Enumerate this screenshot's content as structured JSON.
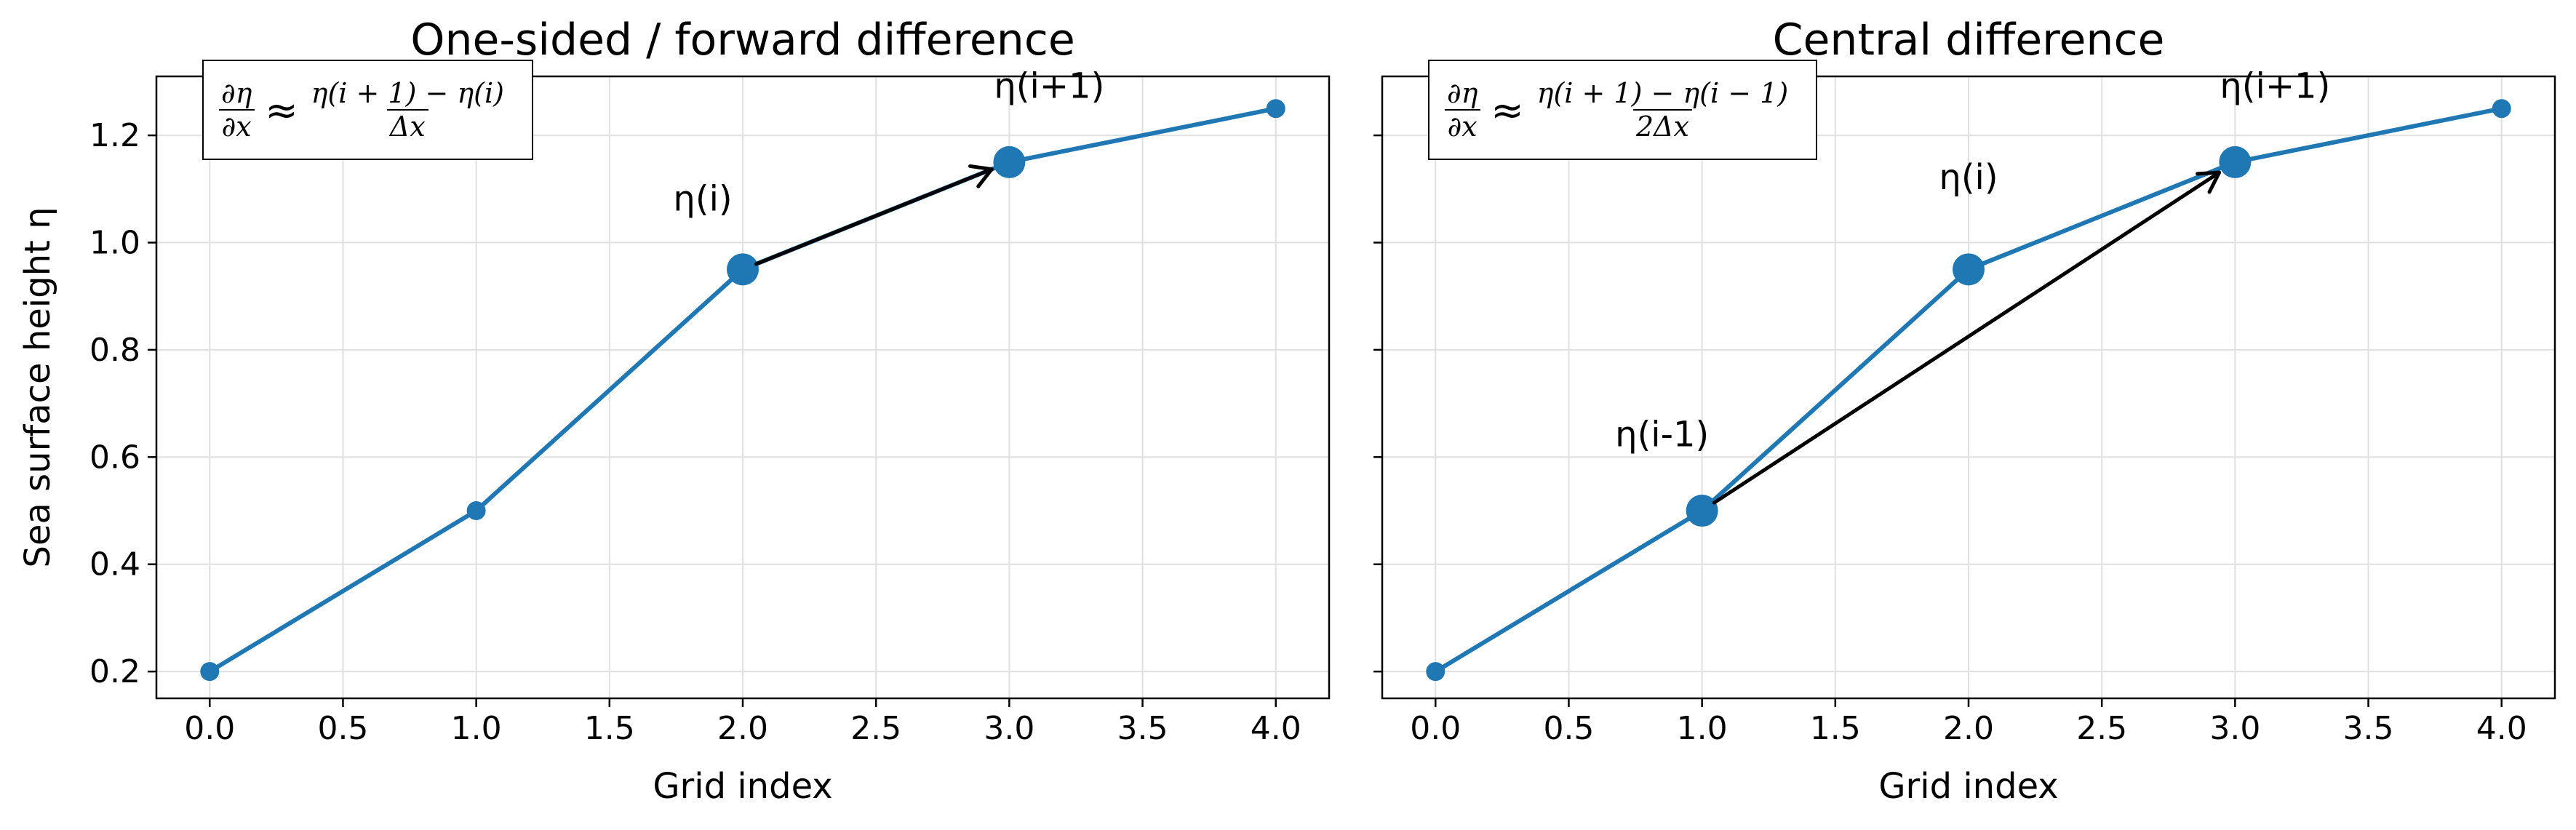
{
  "chart_data": [
    {
      "type": "line",
      "title": "One-sided / forward difference",
      "xlabel": "Grid index",
      "ylabel": "Sea surface height η",
      "x": [
        0,
        1,
        2,
        3,
        4
      ],
      "y": [
        0.2,
        0.5,
        0.95,
        1.15,
        1.25
      ],
      "xlim": [
        -0.2,
        4.2
      ],
      "ylim": [
        0.15,
        1.31
      ],
      "xticks": [
        "0.0",
        "0.5",
        "1.0",
        "1.5",
        "2.0",
        "2.5",
        "3.0",
        "3.5",
        "4.0"
      ],
      "yticks": [
        "0.2",
        "0.4",
        "0.6",
        "0.8",
        "1.0",
        "1.2"
      ],
      "grid": true,
      "highlight_points": [
        2,
        3
      ],
      "annotations": [
        {
          "text": "η(i)",
          "x": 1.85,
          "y": 1.06
        },
        {
          "text": "η(i+1)",
          "x": 3.15,
          "y": 1.27
        }
      ],
      "arrow": {
        "from": [
          2,
          0.95
        ],
        "to": [
          3,
          1.15
        ]
      },
      "formula": {
        "lhs_num": "∂η",
        "lhs_den": "∂x",
        "op": "≈",
        "rhs_num": "η(i + 1) − η(i)",
        "rhs_den": "Δx"
      },
      "colors": {
        "line": "#1f77b4",
        "arrow": "#000000"
      }
    },
    {
      "type": "line",
      "title": "Central difference",
      "xlabel": "Grid index",
      "ylabel": "",
      "x": [
        0,
        1,
        2,
        3,
        4
      ],
      "y": [
        0.2,
        0.5,
        0.95,
        1.15,
        1.25
      ],
      "xlim": [
        -0.2,
        4.2
      ],
      "ylim": [
        0.15,
        1.31
      ],
      "xticks": [
        "0.0",
        "0.5",
        "1.0",
        "1.5",
        "2.0",
        "2.5",
        "3.0",
        "3.5",
        "4.0"
      ],
      "yticks": [],
      "grid": true,
      "highlight_points": [
        1,
        2,
        3
      ],
      "annotations": [
        {
          "text": "η(i-1)",
          "x": 0.85,
          "y": 0.62
        },
        {
          "text": "η(i)",
          "x": 2.0,
          "y": 1.1
        },
        {
          "text": "η(i+1)",
          "x": 3.15,
          "y": 1.27
        }
      ],
      "arrow": {
        "from": [
          1,
          0.5
        ],
        "to": [
          3,
          1.15
        ]
      },
      "formula": {
        "lhs_num": "∂η",
        "lhs_den": "∂x",
        "op": "≈",
        "rhs_num": "η(i + 1) − η(i − 1)",
        "rhs_den": "2Δx"
      },
      "colors": {
        "line": "#1f77b4",
        "arrow": "#000000"
      }
    }
  ]
}
